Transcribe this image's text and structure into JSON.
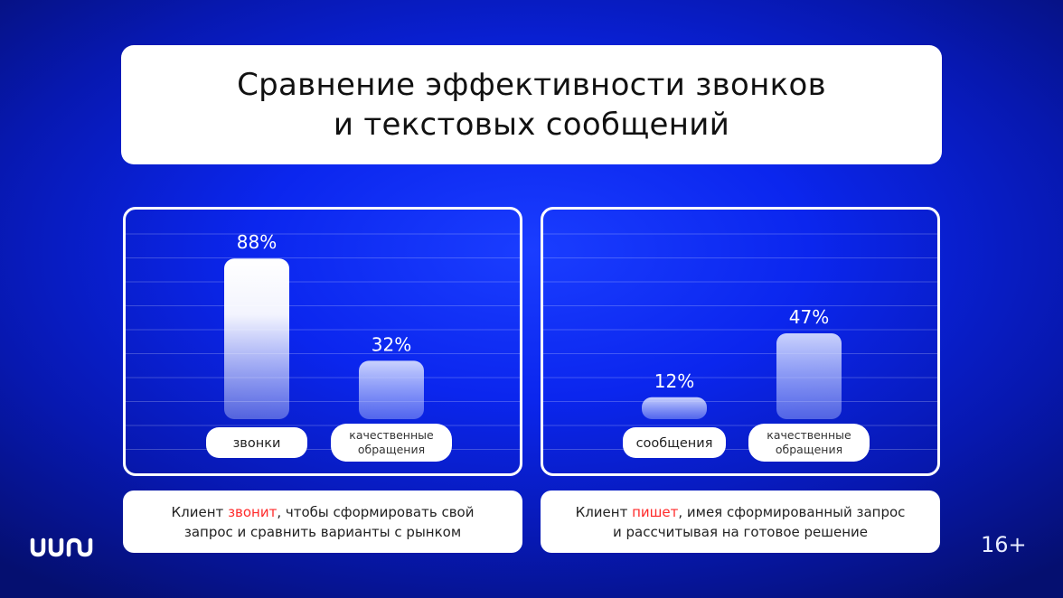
{
  "title": {
    "line1": "Сравнение эффективности звонков",
    "line2": "и текстовых сообщений"
  },
  "chart_data": [
    {
      "type": "bar",
      "categories": [
        "звонки",
        "качественные обращения"
      ],
      "values": [
        88,
        32
      ],
      "value_labels": [
        "88%",
        "32%"
      ],
      "ylim": [
        0,
        100
      ],
      "grid": true
    },
    {
      "type": "bar",
      "categories": [
        "сообщения",
        "качественные обращения"
      ],
      "values": [
        12,
        47
      ],
      "value_labels": [
        "12%",
        "47%"
      ],
      "ylim": [
        0,
        100
      ],
      "grid": true
    }
  ],
  "captions": [
    {
      "before": "Клиент ",
      "highlight": "звонит",
      "after": ", чтобы сформировать свой",
      "line2": "запрос и сравнить варианты с рынком"
    },
    {
      "before": "Клиент ",
      "highlight": "пишет",
      "after": ", имея сформированный запрос",
      "line2": "и рассчитывая на готовое решение"
    }
  ],
  "age_rating": "16+",
  "logo_icon": "uis-logo-icon",
  "colors": {
    "highlight": "#ff2a2a",
    "background": "#0b26ee",
    "card": "#ffffff"
  }
}
